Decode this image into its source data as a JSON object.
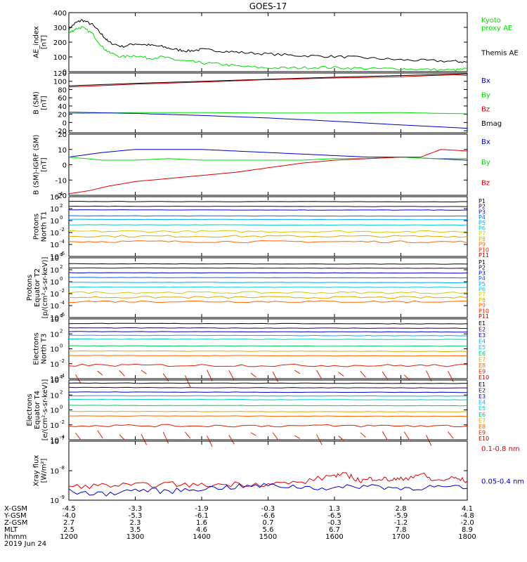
{
  "title": "GOES-17",
  "colors": {
    "black": "#000000",
    "green": "#00dd00",
    "red": "#dd0000",
    "blue": "#0000cc",
    "P1": "#000000",
    "P2": "#2a0040",
    "P3": "#0000cc",
    "P4": "#0066ff",
    "P5": "#00aaff",
    "P6": "#00cccc",
    "P7": "#cccc00",
    "P8": "#ddaa00",
    "P9": "#ff6600",
    "P10": "#dd2200",
    "P11": "#aa0000",
    "E1": "#000000",
    "E2": "#2a0040",
    "E3": "#0000cc",
    "E4": "#00aaff",
    "E5": "#00cccc",
    "E6": "#00cc66",
    "E7": "#ddaa00",
    "E8": "#ff6600",
    "E9": "#dd2200",
    "E10": "#aa0000"
  },
  "chart_data": [
    {
      "type": "line",
      "id": "ae",
      "ylabel": [
        "AE_index",
        "[nT]"
      ],
      "ylim": [
        0,
        400
      ],
      "yticks": [
        0,
        100,
        200,
        300,
        400
      ],
      "ytick_labels": [
        "0",
        "100",
        "200",
        "300",
        "400"
      ],
      "legend": [
        {
          "text": [
            "Kyoto",
            "proxy AE"
          ],
          "color": "green"
        },
        {
          "text": [
            "Themis AE"
          ],
          "color": "black"
        }
      ],
      "series": [
        {
          "name": "Themis AE",
          "color": "black",
          "x": [
            12.0,
            12.1,
            12.2,
            12.35,
            12.5,
            12.6,
            12.8,
            13.0,
            13.2,
            13.4,
            13.6,
            13.8,
            14.0,
            14.3,
            14.6,
            15.0,
            15.4,
            15.8,
            16.2,
            16.6,
            17.0,
            17.4,
            17.8,
            18.0
          ],
          "y": [
            290,
            330,
            350,
            320,
            250,
            200,
            170,
            190,
            180,
            170,
            150,
            140,
            150,
            140,
            130,
            120,
            110,
            105,
            100,
            90,
            80,
            75,
            70,
            65
          ]
        },
        {
          "name": "Kyoto proxy AE",
          "color": "green",
          "x": [
            12.0,
            12.1,
            12.2,
            12.35,
            12.5,
            12.6,
            12.8,
            13.0,
            13.2,
            13.4,
            13.6,
            13.8,
            14.0,
            14.3,
            14.6,
            15.0,
            15.4,
            15.8,
            16.2,
            16.6,
            17.0,
            17.4,
            17.8,
            18.0
          ],
          "y": [
            260,
            290,
            300,
            260,
            170,
            130,
            100,
            110,
            90,
            100,
            80,
            70,
            60,
            50,
            35,
            25,
            25,
            30,
            25,
            20,
            20,
            15,
            10,
            20
          ]
        }
      ]
    },
    {
      "type": "line",
      "id": "bsm",
      "ylabel": [
        "B (SM)",
        "[nT]"
      ],
      "ylim": [
        -25,
        120
      ],
      "yticks": [
        -20,
        0,
        20,
        40,
        60,
        80,
        100,
        120
      ],
      "ytick_labels": [
        "-20",
        "0",
        "20",
        "40",
        "60",
        "80",
        "100",
        "120"
      ],
      "legend": [
        {
          "text": [
            "Bx"
          ],
          "color": "blue"
        },
        {
          "text": [
            "By"
          ],
          "color": "green"
        },
        {
          "text": [
            "Bz"
          ],
          "color": "red"
        },
        {
          "text": [
            "Bmag"
          ],
          "color": "black"
        }
      ],
      "series": [
        {
          "name": "Bmag",
          "color": "black",
          "x": [
            12,
            13,
            14,
            15,
            16,
            17,
            18
          ],
          "y": [
            89,
            95,
            100,
            105,
            110,
            114,
            118
          ]
        },
        {
          "name": "Bz",
          "color": "red",
          "x": [
            12,
            13,
            14,
            15,
            16,
            17,
            17.8,
            18
          ],
          "y": [
            86,
            93,
            98,
            104,
            108,
            111,
            116,
            114
          ]
        },
        {
          "name": "By",
          "color": "green",
          "x": [
            12,
            13,
            14,
            15,
            16,
            17,
            18
          ],
          "y": [
            22,
            24,
            24,
            23,
            23,
            24,
            21
          ]
        },
        {
          "name": "Bx",
          "color": "blue",
          "x": [
            12,
            13,
            14,
            15,
            16,
            17,
            18
          ],
          "y": [
            25,
            22,
            17,
            11,
            3,
            -6,
            -14
          ]
        }
      ]
    },
    {
      "type": "line",
      "id": "bigrf",
      "ylabel": [
        "B (SM)-IGRF (SM)",
        "[nT]"
      ],
      "ylim": [
        -20,
        20
      ],
      "yticks": [
        -20,
        -10,
        0,
        10,
        20
      ],
      "ytick_labels": [
        "-20",
        "-10",
        "0",
        "10",
        "20"
      ],
      "legend": [
        {
          "text": [
            "Bx"
          ],
          "color": "blue"
        },
        {
          "text": [
            "By"
          ],
          "color": "green"
        },
        {
          "text": [
            "Bz"
          ],
          "color": "red"
        }
      ],
      "series": [
        {
          "name": "Bx",
          "color": "blue",
          "x": [
            12,
            12.5,
            13,
            13.5,
            14,
            14.5,
            15,
            15.5,
            16,
            16.5,
            17,
            17.5,
            18
          ],
          "y": [
            5,
            8,
            10,
            10,
            10,
            9,
            8,
            7,
            6,
            5,
            5,
            4,
            3
          ]
        },
        {
          "name": "By",
          "color": "green",
          "x": [
            12,
            12.5,
            13,
            13.5,
            14,
            14.5,
            15,
            15.5,
            16,
            16.5,
            17,
            17.5,
            18
          ],
          "y": [
            5,
            3,
            3,
            4,
            3,
            3,
            3,
            3,
            4,
            4,
            5,
            4,
            4
          ]
        },
        {
          "name": "Bz",
          "color": "red",
          "x": [
            12,
            12.3,
            12.6,
            13,
            13.5,
            14,
            14.5,
            15,
            15.5,
            16,
            16.5,
            17,
            17.3,
            17.6,
            18
          ],
          "y": [
            -19,
            -17,
            -14,
            -11,
            -9,
            -7,
            -5,
            -2,
            1,
            3,
            4,
            5,
            5,
            10,
            9
          ]
        }
      ]
    },
    {
      "type": "line",
      "id": "protons_t1",
      "log": true,
      "ylabel": [
        "Protons",
        "North T1"
      ],
      "yexp": [
        -6,
        4
      ],
      "yticks": [
        -6,
        -4,
        -2,
        0,
        2,
        4
      ],
      "channel_prefix": "P",
      "channels": [
        {
          "name": "P1",
          "v": 3.2
        },
        {
          "name": "P2",
          "v": 2.4
        },
        {
          "name": "P3",
          "v": 1.8
        },
        {
          "name": "P4",
          "v": 0.8
        },
        {
          "name": "P5",
          "v": 0.2
        },
        {
          "name": "P6",
          "v": -0.7
        },
        {
          "name": "P7",
          "v": -1.8
        },
        {
          "name": "P8",
          "v": -2.6
        },
        {
          "name": "P9",
          "v": -3.5
        },
        {
          "name": "P10",
          "v": -9
        },
        {
          "name": "P11",
          "v": -9
        }
      ]
    },
    {
      "type": "line",
      "id": "protons_t2",
      "log": true,
      "ylabel": [
        "Protons",
        "Equator T2",
        "[p/(cm²-s-sr-keV)]"
      ],
      "yexp": [
        -6,
        4
      ],
      "yticks": [
        -6,
        -4,
        -2,
        0,
        2,
        4
      ],
      "channel_prefix": "P",
      "channels": [
        {
          "name": "P1",
          "v": 3.0
        },
        {
          "name": "P2",
          "v": 2.3
        },
        {
          "name": "P3",
          "v": 1.5
        },
        {
          "name": "P4",
          "v": 0.7
        },
        {
          "name": "P5",
          "v": -0.1
        },
        {
          "name": "P6",
          "v": -0.9
        },
        {
          "name": "P7",
          "v": -1.8
        },
        {
          "name": "P8",
          "v": -2.6
        },
        {
          "name": "P9",
          "v": -3.3
        },
        {
          "name": "P10",
          "v": -9
        },
        {
          "name": "P11",
          "v": -9
        }
      ]
    },
    {
      "type": "line",
      "id": "electrons_t3",
      "log": true,
      "ylabel": [
        "Electrons",
        "North T3"
      ],
      "yexp": [
        -4,
        4
      ],
      "yticks": [
        -4,
        -2,
        0,
        2,
        4
      ],
      "channel_prefix": "E",
      "channels": [
        {
          "name": "E1",
          "v": 3.4
        },
        {
          "name": "E2",
          "v": 2.8
        },
        {
          "name": "E3",
          "v": 2.3
        },
        {
          "name": "E4",
          "v": 1.8
        },
        {
          "name": "E5",
          "v": 1.3
        },
        {
          "name": "E6",
          "v": 0.4
        },
        {
          "name": "E7",
          "v": -0.3
        },
        {
          "name": "E8",
          "v": -0.9
        },
        {
          "name": "E9",
          "v": -2.2
        },
        {
          "name": "E10",
          "v": -9
        }
      ]
    },
    {
      "type": "line",
      "id": "electrons_t4",
      "log": true,
      "ylabel": [
        "Electrons",
        "Equator T4",
        "[e/(cm²-s-sr-keV)]"
      ],
      "yexp": [
        -4,
        4
      ],
      "yticks": [
        -4,
        -2,
        0,
        2,
        4
      ],
      "channel_prefix": "E",
      "channels": [
        {
          "name": "E1",
          "v": 3.6
        },
        {
          "name": "E2",
          "v": 3.0
        },
        {
          "name": "E3",
          "v": 2.4
        },
        {
          "name": "E4",
          "v": 1.9
        },
        {
          "name": "E5",
          "v": 1.4
        },
        {
          "name": "E6",
          "v": 0.6
        },
        {
          "name": "E7",
          "v": -0.2
        },
        {
          "name": "E8",
          "v": -0.8
        },
        {
          "name": "E9",
          "v": -2.1
        },
        {
          "name": "E10",
          "v": -9
        }
      ]
    },
    {
      "type": "line",
      "id": "xray",
      "log": true,
      "ylabel": [
        "Xray flux",
        "[W/m²]"
      ],
      "yexp": [
        -9,
        -7
      ],
      "yticks": [
        -9,
        -8,
        -7
      ],
      "legend": [
        {
          "text": [
            "0.1-0.8 nm"
          ],
          "color": "red"
        },
        {
          "text": [
            "0.05-0.4 nm"
          ],
          "color": "blue"
        }
      ],
      "series": [
        {
          "name": "0.1-0.8 nm",
          "color": "red",
          "x": [
            12,
            12.5,
            13,
            13.5,
            14,
            14.5,
            15,
            15.5,
            16,
            16.2,
            16.4,
            16.6,
            16.8,
            17,
            17.3,
            17.5,
            17.8,
            18
          ],
          "y": [
            -8.55,
            -8.5,
            -8.5,
            -8.45,
            -8.5,
            -8.45,
            -8.45,
            -8.4,
            -8.15,
            -8.15,
            -8.35,
            -8.25,
            -8.3,
            -8.3,
            -8.1,
            -8.35,
            -8.25,
            -8.35
          ]
        },
        {
          "name": "0.05-0.4 nm",
          "color": "blue",
          "x": [
            12,
            12.5,
            13,
            13.5,
            14,
            14.5,
            15,
            15.5,
            16,
            16.5,
            17,
            17.5,
            18
          ],
          "y": [
            -8.7,
            -8.8,
            -8.65,
            -8.7,
            -8.6,
            -8.55,
            -8.5,
            -8.55,
            -8.6,
            -8.5,
            -8.6,
            -8.55,
            -8.6
          ]
        }
      ]
    }
  ],
  "x_axis": {
    "range": [
      12,
      18
    ],
    "ticks": [
      12,
      13,
      14,
      15,
      16,
      17,
      18
    ],
    "rows": [
      {
        "label": "X-GSM",
        "values": [
          "-4.5",
          "-3.3",
          "-1.9",
          "-0.3",
          "1.3",
          "2.8",
          "4.1"
        ]
      },
      {
        "label": "Y-GSM",
        "values": [
          "-4.0",
          "-5.3",
          "-6.1",
          "-6.6",
          "-6.5",
          "-5.9",
          "-4.8"
        ]
      },
      {
        "label": "Z-GSM",
        "values": [
          "2.7",
          "2.3",
          "1.6",
          "0.7",
          "-0.3",
          "-1.2",
          "-2.0"
        ]
      },
      {
        "label": "MLT",
        "values": [
          "2.5",
          "3.5",
          "4.6",
          "5.6",
          "6.7",
          "7.8",
          "8.9"
        ]
      },
      {
        "label": "hhmm",
        "values": [
          "1200",
          "1300",
          "1400",
          "1500",
          "1600",
          "1700",
          "1800"
        ]
      }
    ],
    "date": "2019 Jun 24"
  }
}
